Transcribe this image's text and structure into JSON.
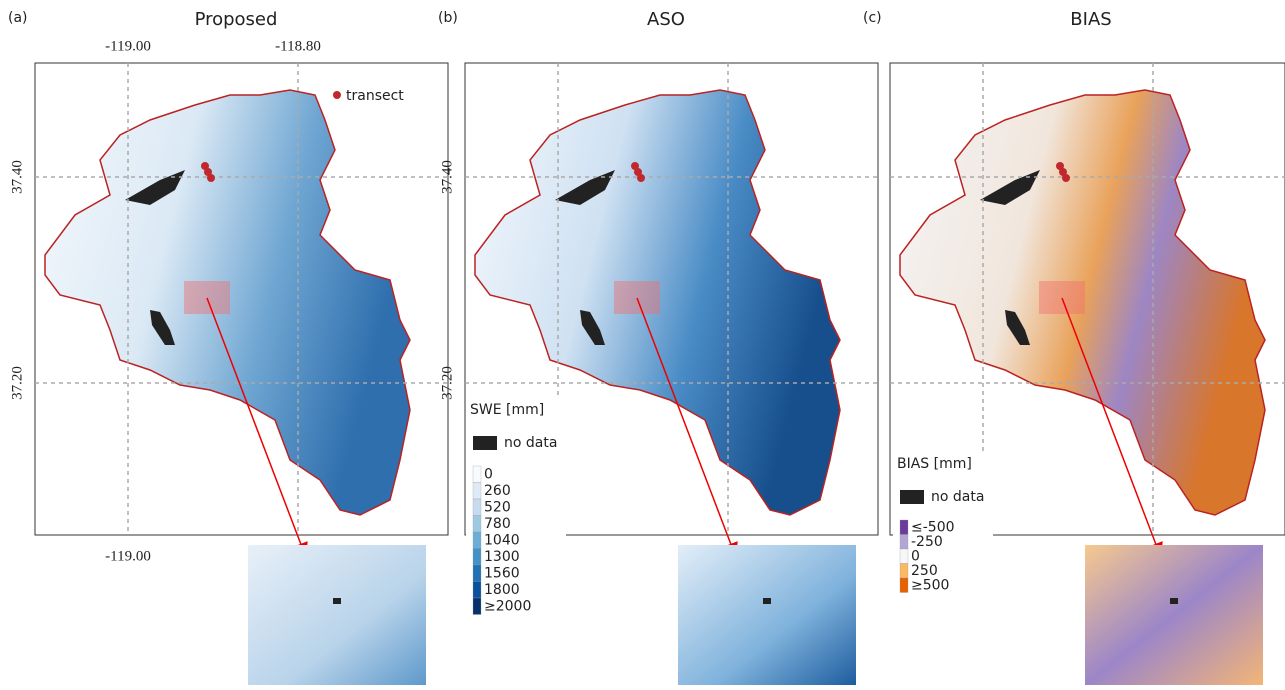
{
  "panels": [
    {
      "label": "(a)",
      "title": "Proposed"
    },
    {
      "label": "(b)",
      "title": "ASO"
    },
    {
      "label": "(c)",
      "title": "BIAS"
    }
  ],
  "panel_a_axes": {
    "top": [
      "-119.00",
      "-118.80"
    ],
    "bottom": [
      "-119.00"
    ],
    "left": [
      "37.40",
      "37.20"
    ]
  },
  "panel_b_axes": {
    "left": [
      "37.40",
      "37.20"
    ]
  },
  "transect_legend": "transect",
  "swe_legend": {
    "title": "SWE [mm]",
    "no_data": "no data",
    "classes": [
      {
        "label": "0",
        "color": "#f7fbff"
      },
      {
        "label": "260",
        "color": "#deebf7"
      },
      {
        "label": "520",
        "color": "#c6dbef"
      },
      {
        "label": "780",
        "color": "#9ecae1"
      },
      {
        "label": "1040",
        "color": "#6baed6"
      },
      {
        "label": "1300",
        "color": "#4292c6"
      },
      {
        "label": "1560",
        "color": "#2171b5"
      },
      {
        "label": "1800",
        "color": "#08519c"
      },
      {
        "label": "≥2000",
        "color": "#08306b"
      }
    ]
  },
  "bias_legend": {
    "title": "BIAS [mm]",
    "no_data": "no data",
    "classes": [
      {
        "label": "≤-500",
        "color": "#6a3d9a"
      },
      {
        "label": "-250",
        "color": "#b3a5d6"
      },
      {
        "label": "0",
        "color": "#f7f7f7"
      },
      {
        "label": "250",
        "color": "#fdb863"
      },
      {
        "label": "≥500",
        "color": "#e66101"
      }
    ]
  }
}
